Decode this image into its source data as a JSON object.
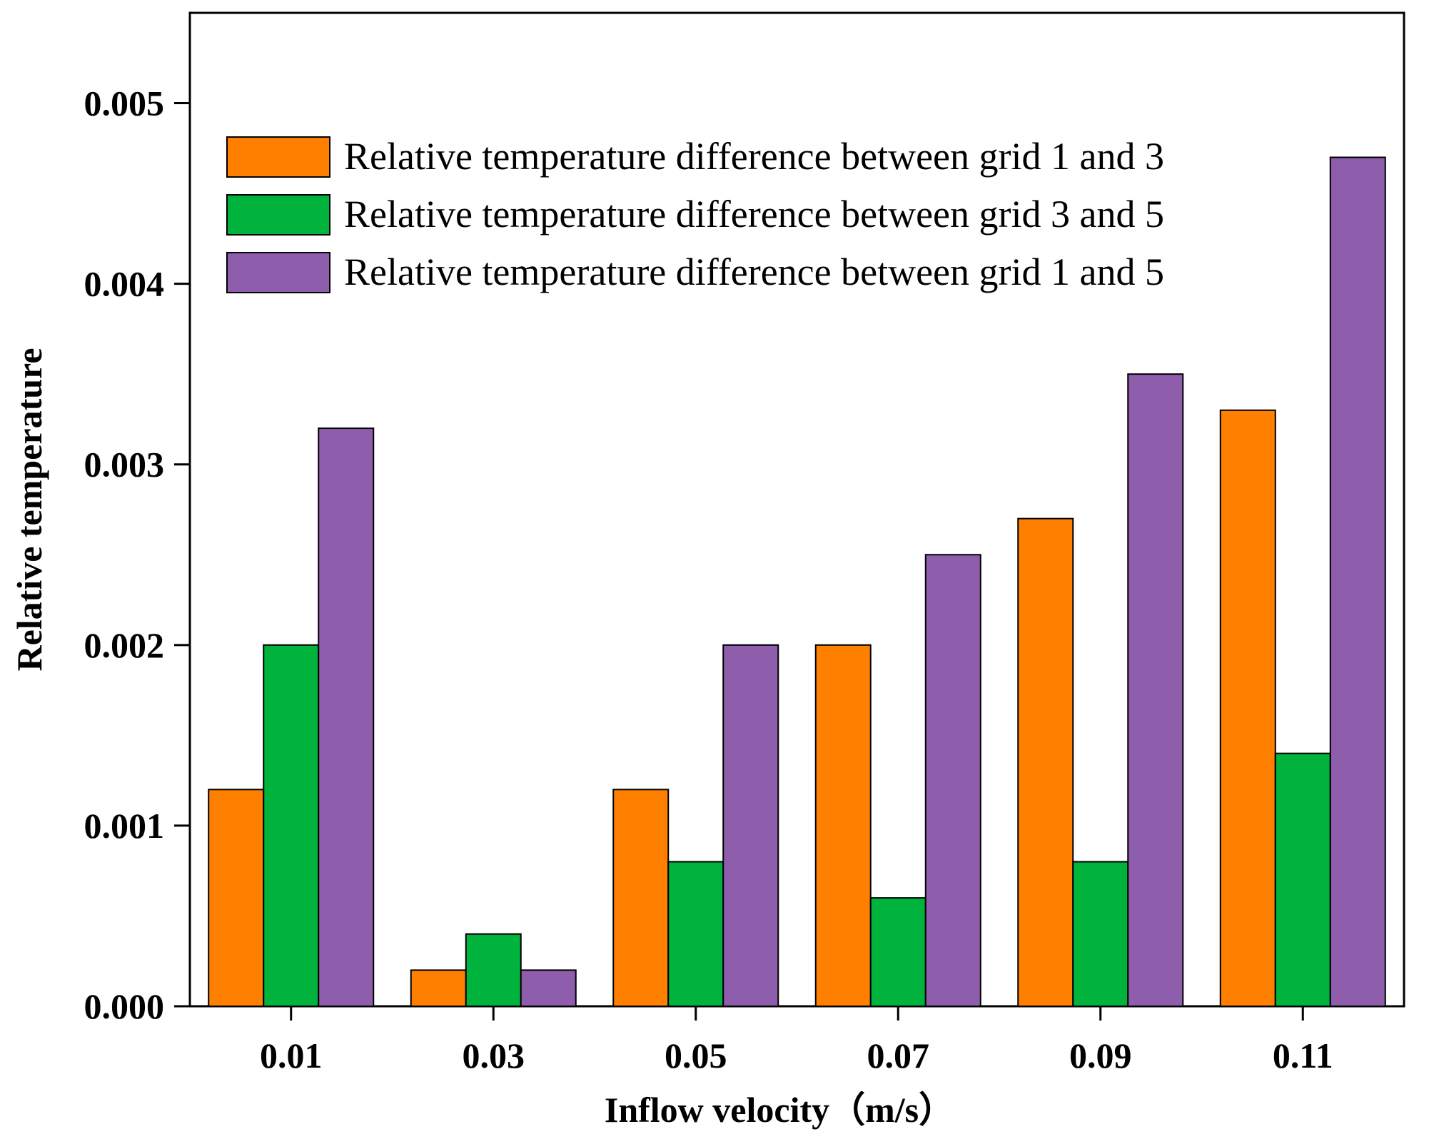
{
  "chart_data": {
    "type": "bar",
    "title": "",
    "xlabel": "Inflow velocity（m/s）",
    "ylabel": "Relative temperature",
    "categories": [
      "0.01",
      "0.03",
      "0.05",
      "0.07",
      "0.09",
      "0.11"
    ],
    "ylim": [
      0,
      0.0055
    ],
    "yticks": [
      "0.000",
      "0.001",
      "0.002",
      "0.003",
      "0.004",
      "0.005"
    ],
    "ytick_values": [
      0,
      0.001,
      0.002,
      0.003,
      0.004,
      0.005
    ],
    "grid": false,
    "legend_position": "top-right",
    "series": [
      {
        "name": "Relative temperature difference between grid 1 and 3",
        "color": "#FF8000",
        "values": [
          0.0012,
          0.0002,
          0.0012,
          0.002,
          0.0027,
          0.0033
        ]
      },
      {
        "name": "Relative temperature difference between grid 3 and 5",
        "color": "#00B33C",
        "values": [
          0.002,
          0.0004,
          0.0008,
          0.0006,
          0.0008,
          0.0014
        ]
      },
      {
        "name": "Relative temperature difference between grid 1 and 5",
        "color": "#8E5EAD",
        "values": [
          0.0032,
          0.0002,
          0.002,
          0.0025,
          0.0035,
          0.0047
        ]
      }
    ]
  }
}
